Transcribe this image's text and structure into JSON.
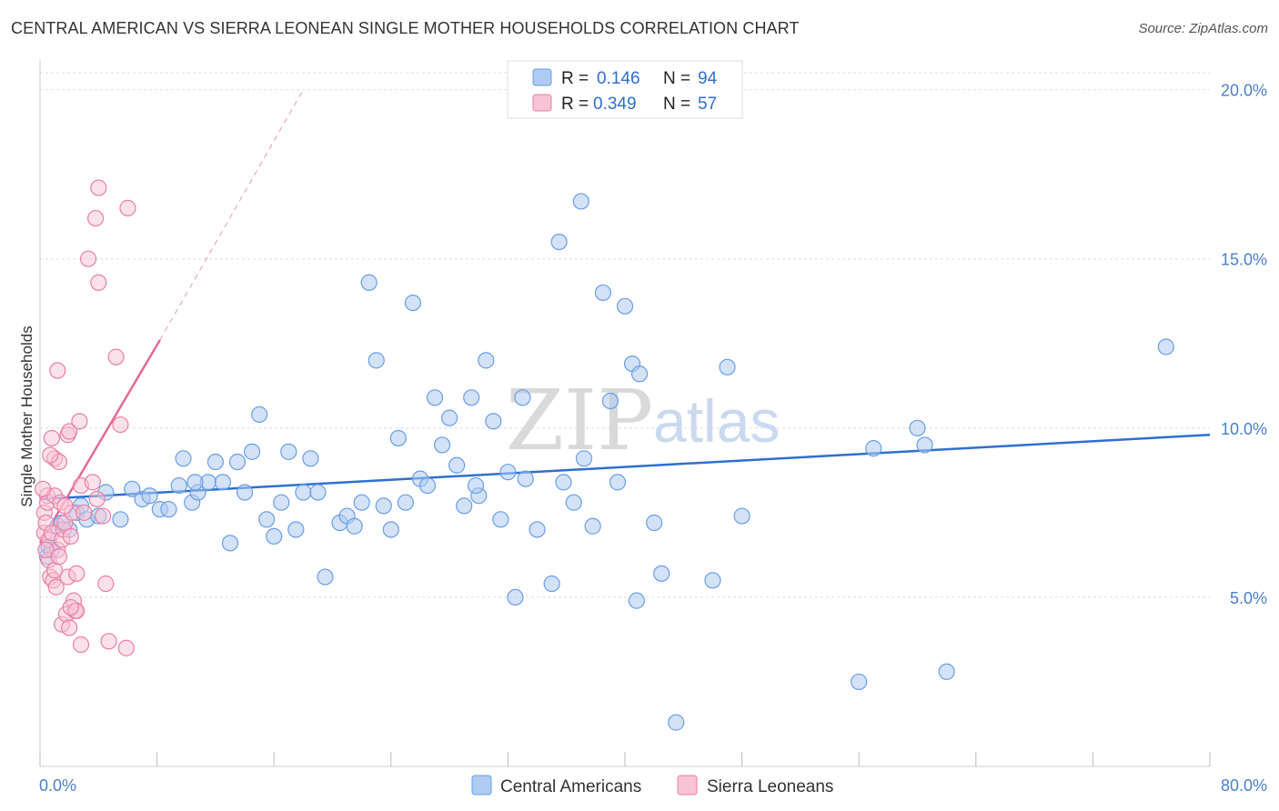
{
  "title": "CENTRAL AMERICAN VS SIERRA LEONEAN SINGLE MOTHER HOUSEHOLDS CORRELATION CHART",
  "source": "Source: ZipAtlas.com",
  "watermark": {
    "part1": "ZIP",
    "part2": "atlas"
  },
  "colors": {
    "blue": "#6a9ee6",
    "blue_fill": "#aecbf1",
    "blue_line": "#2f6fd0",
    "pink": "#ea7fa5",
    "pink_fill": "#f7c3d5",
    "pink_line": "#e26a97",
    "grid": "#dddddd",
    "tick_text": "#4a7fcf"
  },
  "legend": {
    "rows": [
      {
        "r_label": "R =",
        "r_value": "0.146",
        "n_label": "N =",
        "n_value": "94"
      },
      {
        "r_label": "R =",
        "r_value": "0.349",
        "n_label": "N =",
        "n_value": "57"
      }
    ]
  },
  "chart_data": {
    "type": "scatter",
    "title": "CENTRAL AMERICAN VS SIERRA LEONEAN SINGLE MOTHER HOUSEHOLDS CORRELATION CHART",
    "xlabel": "",
    "ylabel": "Single Mother Households",
    "xlim": [
      0,
      80
    ],
    "ylim": [
      0,
      20.5
    ],
    "x_tick_labels": [
      "0.0%",
      "80.0%"
    ],
    "y_tick_values": [
      5,
      10,
      15,
      20
    ],
    "y_tick_labels": [
      "5.0%",
      "10.0%",
      "15.0%",
      "20.0%"
    ],
    "series": [
      {
        "name": "Central Americans",
        "r": 0.146,
        "n": 94,
        "trend": {
          "x0": 0,
          "y0": 7.9,
          "x1": 80,
          "y1": 9.8
        },
        "points": [
          [
            0.5,
            6.2
          ],
          [
            0.6,
            6.5
          ],
          [
            0.8,
            6.4
          ],
          [
            1.2,
            7.1
          ],
          [
            1.5,
            7.2
          ],
          [
            2.0,
            7.0
          ],
          [
            2.5,
            7.5
          ],
          [
            2.8,
            7.7
          ],
          [
            3.2,
            7.3
          ],
          [
            4.0,
            7.4
          ],
          [
            4.5,
            8.1
          ],
          [
            5.5,
            7.3
          ],
          [
            6.3,
            8.2
          ],
          [
            7.0,
            7.9
          ],
          [
            7.5,
            8.0
          ],
          [
            8.2,
            7.6
          ],
          [
            8.8,
            7.6
          ],
          [
            9.5,
            8.3
          ],
          [
            9.8,
            9.1
          ],
          [
            10.4,
            7.8
          ],
          [
            10.8,
            8.1
          ],
          [
            11.5,
            8.4
          ],
          [
            12.0,
            9.0
          ],
          [
            12.5,
            8.4
          ],
          [
            13.0,
            6.6
          ],
          [
            13.5,
            9.0
          ],
          [
            14.0,
            8.1
          ],
          [
            14.5,
            9.3
          ],
          [
            15.0,
            10.4
          ],
          [
            15.5,
            7.3
          ],
          [
            16.0,
            6.8
          ],
          [
            16.5,
            7.8
          ],
          [
            17.0,
            9.3
          ],
          [
            17.5,
            7.0
          ],
          [
            18.0,
            8.1
          ],
          [
            18.5,
            9.1
          ],
          [
            19.0,
            8.1
          ],
          [
            19.5,
            5.6
          ],
          [
            20.5,
            7.2
          ],
          [
            21.0,
            7.4
          ],
          [
            21.5,
            7.1
          ],
          [
            22.0,
            7.8
          ],
          [
            22.5,
            14.3
          ],
          [
            23.0,
            12.0
          ],
          [
            23.5,
            7.7
          ],
          [
            24.0,
            7.0
          ],
          [
            24.5,
            9.7
          ],
          [
            25.0,
            7.8
          ],
          [
            25.5,
            13.7
          ],
          [
            26.0,
            8.5
          ],
          [
            26.5,
            8.3
          ],
          [
            27.0,
            10.9
          ],
          [
            27.5,
            9.5
          ],
          [
            28.0,
            10.3
          ],
          [
            28.5,
            8.9
          ],
          [
            29.0,
            7.7
          ],
          [
            29.5,
            10.9
          ],
          [
            30.0,
            8.0
          ],
          [
            30.5,
            12.0
          ],
          [
            31.0,
            10.2
          ],
          [
            31.5,
            7.3
          ],
          [
            32.0,
            8.7
          ],
          [
            32.5,
            5.0
          ],
          [
            33.0,
            10.9
          ],
          [
            33.2,
            8.5
          ],
          [
            34.0,
            7.0
          ],
          [
            35.0,
            5.4
          ],
          [
            35.5,
            15.5
          ],
          [
            35.8,
            8.4
          ],
          [
            36.5,
            7.8
          ],
          [
            37.0,
            16.7
          ],
          [
            37.2,
            9.1
          ],
          [
            37.8,
            7.1
          ],
          [
            38.5,
            14.0
          ],
          [
            39.0,
            10.8
          ],
          [
            39.5,
            8.4
          ],
          [
            40.0,
            13.6
          ],
          [
            40.5,
            11.9
          ],
          [
            40.8,
            4.9
          ],
          [
            41.0,
            11.6
          ],
          [
            42.0,
            7.2
          ],
          [
            42.5,
            5.7
          ],
          [
            43.5,
            1.3
          ],
          [
            46.0,
            5.5
          ],
          [
            47.0,
            11.8
          ],
          [
            48.0,
            7.4
          ],
          [
            56.0,
            2.5
          ],
          [
            57.0,
            9.4
          ],
          [
            60.0,
            10.0
          ],
          [
            60.5,
            9.5
          ],
          [
            62.0,
            2.8
          ],
          [
            77.0,
            12.4
          ],
          [
            10.6,
            8.4
          ],
          [
            29.8,
            8.3
          ]
        ]
      },
      {
        "name": "Sierra Leoneans",
        "r": 0.349,
        "n": 57,
        "trend": {
          "x0": 0,
          "y0": 6.6,
          "x1": 8.2,
          "y1": 12.6,
          "dash_to_x": 18,
          "dash_to_y": 20.0
        },
        "points": [
          [
            0.3,
            7.5
          ],
          [
            0.3,
            6.9
          ],
          [
            0.4,
            7.2
          ],
          [
            0.5,
            8.0
          ],
          [
            0.5,
            7.8
          ],
          [
            0.6,
            6.7
          ],
          [
            0.6,
            6.1
          ],
          [
            0.7,
            5.6
          ],
          [
            0.8,
            9.7
          ],
          [
            0.8,
            6.9
          ],
          [
            0.9,
            5.5
          ],
          [
            1.0,
            9.1
          ],
          [
            1.0,
            8.0
          ],
          [
            1.1,
            5.3
          ],
          [
            1.2,
            6.4
          ],
          [
            1.2,
            11.7
          ],
          [
            1.3,
            9.0
          ],
          [
            1.4,
            7.8
          ],
          [
            1.5,
            4.2
          ],
          [
            1.5,
            6.7
          ],
          [
            1.6,
            7.0
          ],
          [
            1.7,
            7.2
          ],
          [
            1.8,
            4.5
          ],
          [
            1.9,
            5.6
          ],
          [
            1.9,
            9.8
          ],
          [
            2.0,
            9.9
          ],
          [
            2.0,
            4.1
          ],
          [
            2.1,
            6.8
          ],
          [
            2.2,
            7.5
          ],
          [
            2.3,
            4.9
          ],
          [
            2.4,
            4.6
          ],
          [
            2.5,
            4.6
          ],
          [
            2.5,
            5.7
          ],
          [
            2.7,
            10.2
          ],
          [
            2.8,
            3.6
          ],
          [
            2.8,
            8.3
          ],
          [
            3.0,
            7.5
          ],
          [
            3.3,
            15.0
          ],
          [
            3.6,
            8.4
          ],
          [
            3.8,
            16.2
          ],
          [
            3.9,
            7.9
          ],
          [
            4.0,
            14.3
          ],
          [
            4.0,
            17.1
          ],
          [
            4.3,
            7.4
          ],
          [
            4.5,
            5.4
          ],
          [
            4.7,
            3.7
          ],
          [
            5.2,
            12.1
          ],
          [
            5.5,
            10.1
          ],
          [
            5.9,
            3.5
          ],
          [
            6.0,
            16.5
          ],
          [
            0.2,
            8.2
          ],
          [
            0.4,
            6.4
          ],
          [
            0.7,
            9.2
          ],
          [
            1.0,
            5.8
          ],
          [
            1.3,
            6.2
          ],
          [
            1.7,
            7.7
          ],
          [
            2.1,
            4.7
          ]
        ]
      }
    ],
    "legend": [
      {
        "name": "Central Americans",
        "color": "#aecbf1"
      },
      {
        "name": "Sierra Leoneans",
        "color": "#f7c3d5"
      }
    ]
  }
}
